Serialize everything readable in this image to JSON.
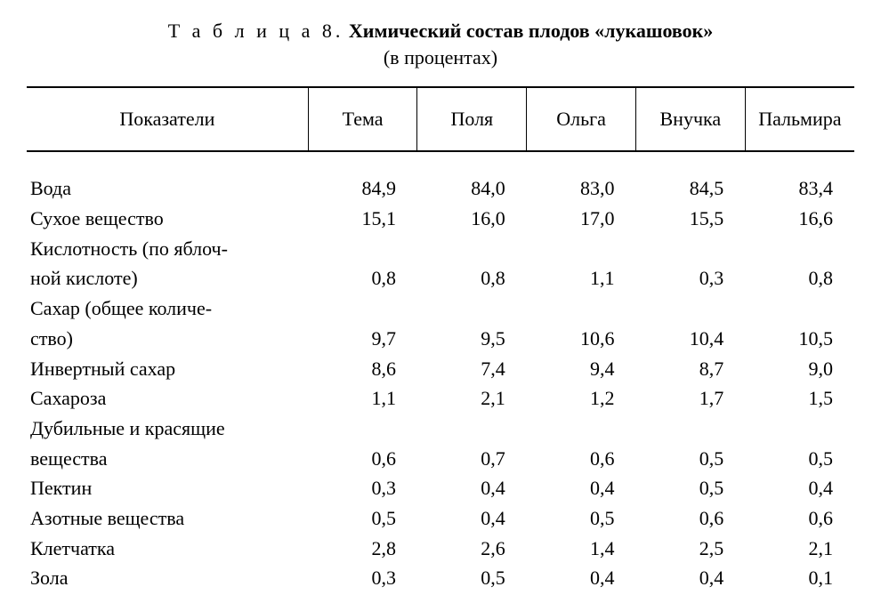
{
  "title": {
    "label": "Т а б л и ц а  8.",
    "main": "Химический состав плодов «лукашовок»",
    "sub": "(в процентах)"
  },
  "table": {
    "type": "table",
    "background_color": "#ffffff",
    "text_color": "#000000",
    "border_color": "#000000",
    "font_family": "Times New Roman",
    "title_fontsize": 22,
    "body_fontsize": 22,
    "header_border_top_width": 2,
    "header_border_bottom_width": 2,
    "column_divider_width": 1.5,
    "columns": [
      {
        "key": "label",
        "header": "Показатели",
        "align": "left",
        "width_pct": 34
      },
      {
        "key": "tema",
        "header": "Тема",
        "align": "right",
        "width_pct": 13.2
      },
      {
        "key": "polya",
        "header": "Поля",
        "align": "right",
        "width_pct": 13.2
      },
      {
        "key": "olga",
        "header": "Ольга",
        "align": "right",
        "width_pct": 13.2
      },
      {
        "key": "vnuchka",
        "header": "Внучка",
        "align": "right",
        "width_pct": 13.2
      },
      {
        "key": "palmira",
        "header": "Пальмира",
        "align": "right",
        "width_pct": 13.2
      }
    ],
    "rows": [
      {
        "label_line1": "Вода",
        "label_line2": "",
        "tema": "84,9",
        "polya": "84,0",
        "olga": "83,0",
        "vnuchka": "84,5",
        "palmira": "83,4"
      },
      {
        "label_line1": "Сухое вещество",
        "label_line2": "",
        "tema": "15,1",
        "polya": "16,0",
        "olga": "17,0",
        "vnuchka": "15,5",
        "palmira": "16,6"
      },
      {
        "label_line1": "Кислотность (по яблоч-",
        "label_line2": "ной кислоте)",
        "tema": "0,8",
        "polya": "0,8",
        "olga": "1,1",
        "vnuchka": "0,3",
        "palmira": "0,8"
      },
      {
        "label_line1": "Сахар (общее количе-",
        "label_line2": "ство)",
        "tema": "9,7",
        "polya": "9,5",
        "olga": "10,6",
        "vnuchka": "10,4",
        "palmira": "10,5"
      },
      {
        "label_line1": "Инвертный сахар",
        "label_line2": "",
        "tema": "8,6",
        "polya": "7,4",
        "olga": "9,4",
        "vnuchka": "8,7",
        "palmira": "9,0"
      },
      {
        "label_line1": "Сахароза",
        "label_line2": "",
        "tema": "1,1",
        "polya": "2,1",
        "olga": "1,2",
        "vnuchka": "1,7",
        "palmira": "1,5"
      },
      {
        "label_line1": "Дубильные и красящие",
        "label_line2": "вещества",
        "tema": "0,6",
        "polya": "0,7",
        "olga": "0,6",
        "vnuchka": "0,5",
        "palmira": "0,5"
      },
      {
        "label_line1": "Пектин",
        "label_line2": "",
        "tema": "0,3",
        "polya": "0,4",
        "olga": "0,4",
        "vnuchka": "0,5",
        "palmira": "0,4"
      },
      {
        "label_line1": "Азотные вещества",
        "label_line2": "",
        "tema": "0,5",
        "polya": "0,4",
        "olga": "0,5",
        "vnuchka": "0,6",
        "palmira": "0,6"
      },
      {
        "label_line1": "Клетчатка",
        "label_line2": "",
        "tema": "2,8",
        "polya": "2,6",
        "olga": "1,4",
        "vnuchka": "2,5",
        "palmira": "2,1"
      },
      {
        "label_line1": "Зола",
        "label_line2": "",
        "tema": "0,3",
        "polya": "0,5",
        "olga": "0,4",
        "vnuchka": "0,4",
        "palmira": "0,1"
      }
    ]
  }
}
